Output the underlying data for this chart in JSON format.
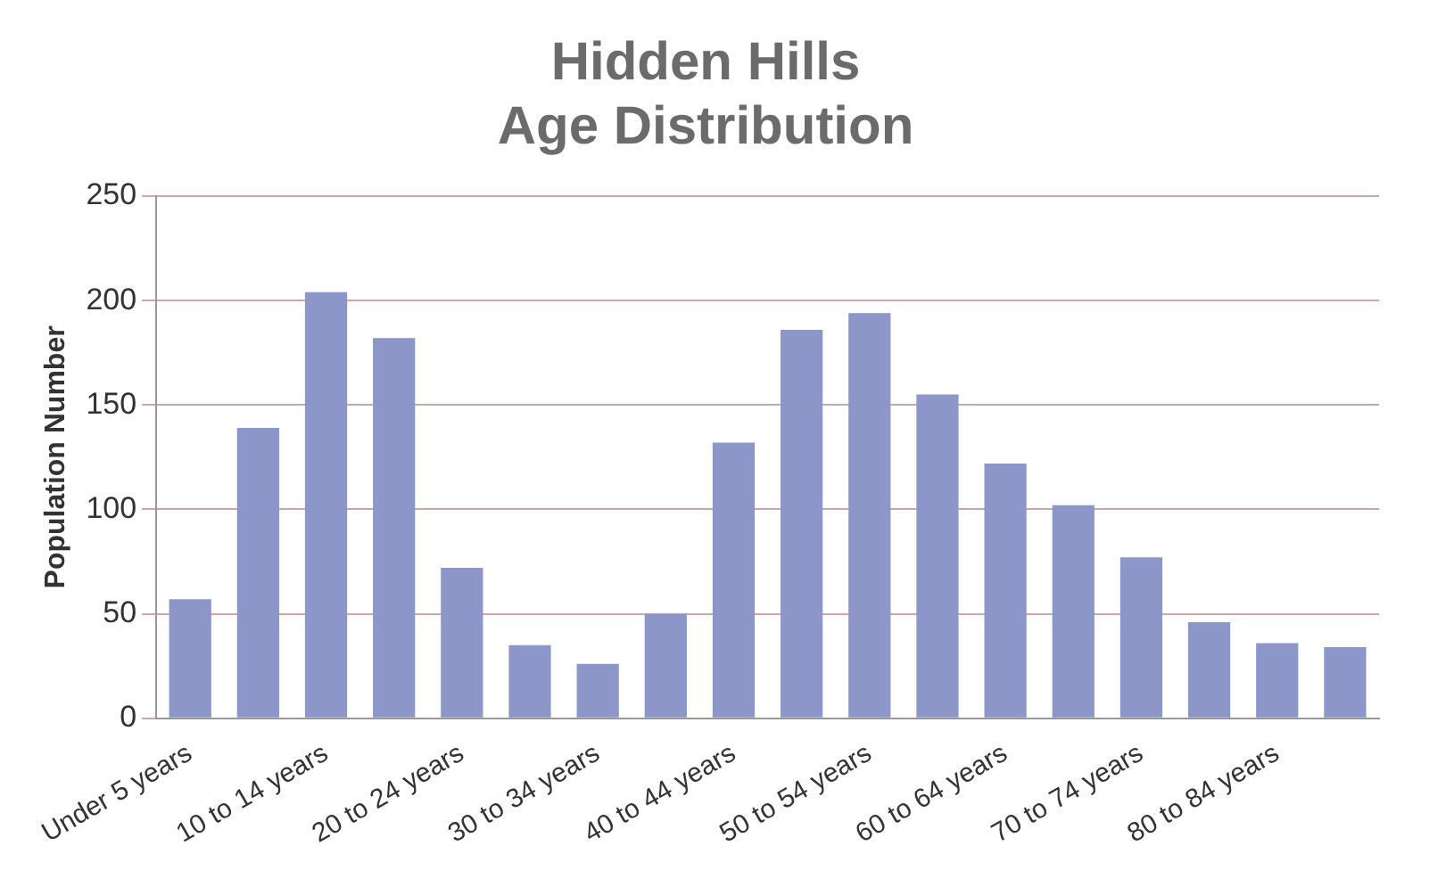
{
  "chart_data": {
    "type": "bar",
    "title": [
      "Hidden Hills",
      "Age Distribution"
    ],
    "ylabel": "Population Number",
    "categories": [
      "Under 5 years",
      null,
      "10 to 14 years",
      null,
      "20 to 24 years",
      null,
      "30 to 34 years",
      null,
      "40 to 44 years",
      null,
      "50 to 54 years",
      null,
      "60 to 64 years",
      null,
      "70 to 74 years",
      null,
      "80 to 84 years",
      null
    ],
    "values": [
      57,
      139,
      204,
      182,
      72,
      35,
      26,
      50,
      132,
      186,
      194,
      155,
      122,
      102,
      77,
      46,
      36,
      34
    ],
    "color": "#8c96c8",
    "ylim": [
      0,
      250
    ],
    "yticks": [
      0,
      50,
      100,
      150,
      200,
      250
    ],
    "grid": "y",
    "legend": false
  }
}
